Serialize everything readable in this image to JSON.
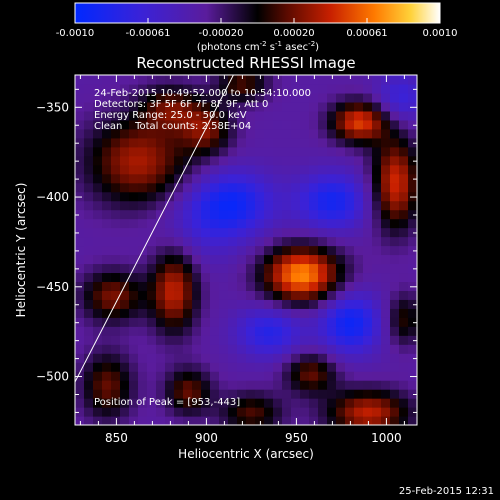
{
  "colorbar": {
    "tick_labels": [
      "-0.0010",
      "-0.00061",
      "-0.00020",
      "0.00020",
      "0.00061",
      "0.0010"
    ],
    "unit_text": "(photons cm",
    "unit_sup1": "-2",
    "unit_mid": " s",
    "unit_sup2": "-1",
    "unit_end": " asec",
    "unit_sup3": "-2",
    "unit_close": ")",
    "range": [
      -0.001,
      0.001
    ]
  },
  "chart_data": {
    "type": "heatmap",
    "title": "Reconstructed RHESSI Image",
    "xlabel": "Heliocentric X (arcsec)",
    "ylabel": "Heliocentric Y (arcsec)",
    "xlim": [
      827,
      1017
    ],
    "ylim": [
      -527,
      -332
    ],
    "x_ticks": [
      850,
      900,
      950,
      1000
    ],
    "x_tick_labels": [
      "850",
      "900",
      "950",
      "1000"
    ],
    "y_ticks": [
      -350,
      -400,
      -450,
      -500
    ],
    "y_tick_labels": [
      "−350",
      "−400",
      "−450",
      "−500"
    ],
    "annotations": [
      "24-Feb-2015 10:49:52.000 to 10:54:10.000",
      "Detectors: 3F 5F 6F 7F 8F 9F, Att 0",
      "Energy Range: 25.0 - 50.0 keV",
      "Clean    Total counts: 2.58E+04"
    ],
    "peak_label": "Position of Peak = [953,-443]",
    "peak_position": [
      953,
      -443
    ],
    "limb_line": [
      [
        827,
        -503
      ],
      [
        915,
        -332
      ]
    ],
    "sources": [
      {
        "x": 953,
        "y": -443,
        "amp": 1.0,
        "sx": 15,
        "sy": 11
      },
      {
        "x": 1005,
        "y": -392,
        "amp": 0.75,
        "sx": 9,
        "sy": 18
      },
      {
        "x": 985,
        "y": -358,
        "amp": 0.8,
        "sx": 11,
        "sy": 8
      },
      {
        "x": 862,
        "y": -380,
        "amp": 0.65,
        "sx": 20,
        "sy": 17
      },
      {
        "x": 880,
        "y": -350,
        "amp": 0.45,
        "sx": 12,
        "sy": 9
      },
      {
        "x": 900,
        "y": -362,
        "amp": 0.5,
        "sx": 10,
        "sy": 10
      },
      {
        "x": 920,
        "y": -337,
        "amp": 0.45,
        "sx": 10,
        "sy": 7
      },
      {
        "x": 882,
        "y": -452,
        "amp": 0.7,
        "sx": 9,
        "sy": 16
      },
      {
        "x": 848,
        "y": -455,
        "amp": 0.55,
        "sx": 12,
        "sy": 10
      },
      {
        "x": 845,
        "y": -505,
        "amp": 0.5,
        "sx": 10,
        "sy": 13
      },
      {
        "x": 958,
        "y": -498,
        "amp": 0.5,
        "sx": 10,
        "sy": 8
      },
      {
        "x": 990,
        "y": -520,
        "amp": 0.7,
        "sx": 16,
        "sy": 9
      },
      {
        "x": 925,
        "y": -520,
        "amp": 0.45,
        "sx": 12,
        "sy": 8
      },
      {
        "x": 890,
        "y": -508,
        "amp": 0.5,
        "sx": 9,
        "sy": 9
      },
      {
        "x": 1010,
        "y": -468,
        "amp": 0.4,
        "sx": 7,
        "sy": 10
      },
      {
        "x": 970,
        "y": -402,
        "amp": -0.55,
        "sx": 14,
        "sy": 11
      },
      {
        "x": 915,
        "y": -402,
        "amp": -0.5,
        "sx": 16,
        "sy": 12
      },
      {
        "x": 980,
        "y": -470,
        "amp": -0.6,
        "sx": 12,
        "sy": 12
      },
      {
        "x": 935,
        "y": -475,
        "amp": -0.45,
        "sx": 13,
        "sy": 10
      },
      {
        "x": 1008,
        "y": -345,
        "amp": -0.35,
        "sx": 10,
        "sy": 10
      },
      {
        "x": 900,
        "y": -415,
        "amp": -0.25,
        "sx": 18,
        "sy": 15
      }
    ],
    "grid": false
  },
  "timestamp": "25-Feb-2015 12:31"
}
